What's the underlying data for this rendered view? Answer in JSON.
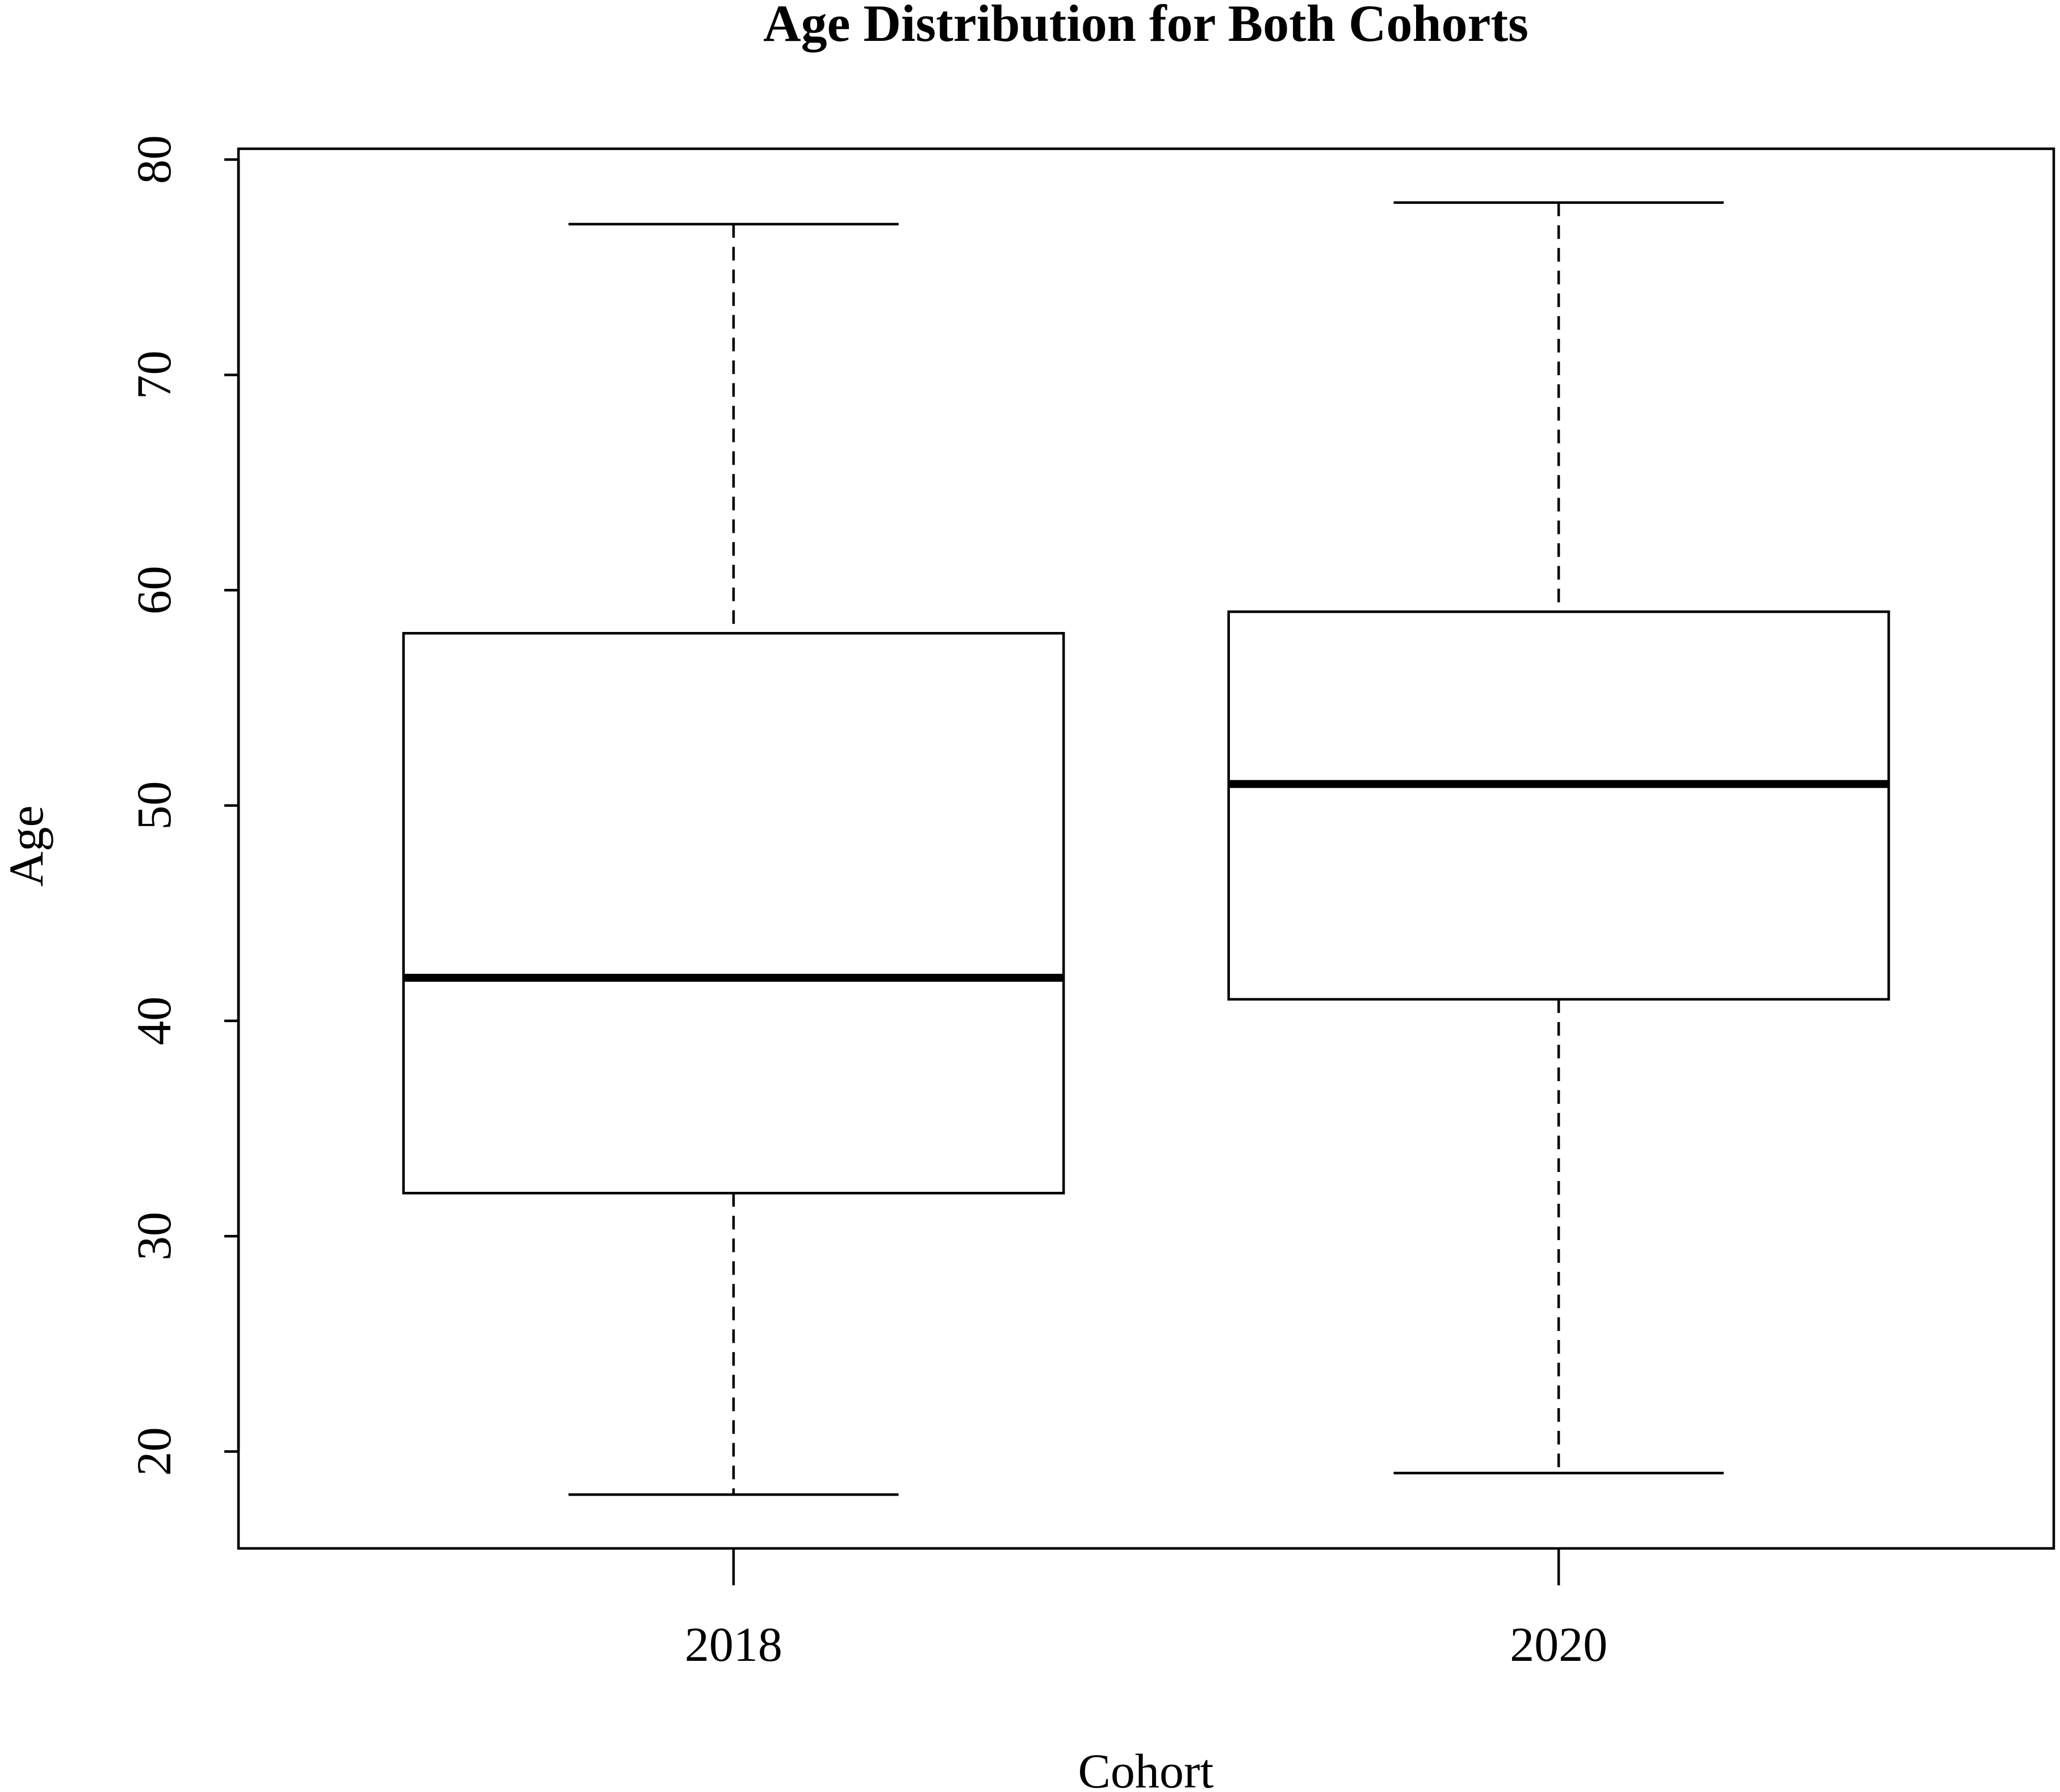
{
  "chart_data": {
    "type": "box",
    "title": "Age Distribution for Both Cohorts",
    "xlabel": "Cohort",
    "ylabel": "Age",
    "ylim": [
      15.5,
      80.5
    ],
    "yticks": [
      20,
      30,
      40,
      50,
      60,
      70,
      80
    ],
    "categories": [
      "2018",
      "2020"
    ],
    "boxes": [
      {
        "category": "2018",
        "min": 18,
        "q1": 32,
        "median": 42,
        "q3": 58,
        "max": 77
      },
      {
        "category": "2020",
        "min": 19,
        "q1": 41,
        "median": 51,
        "q3": 59,
        "max": 78
      }
    ],
    "grid": false,
    "legend": "none"
  }
}
